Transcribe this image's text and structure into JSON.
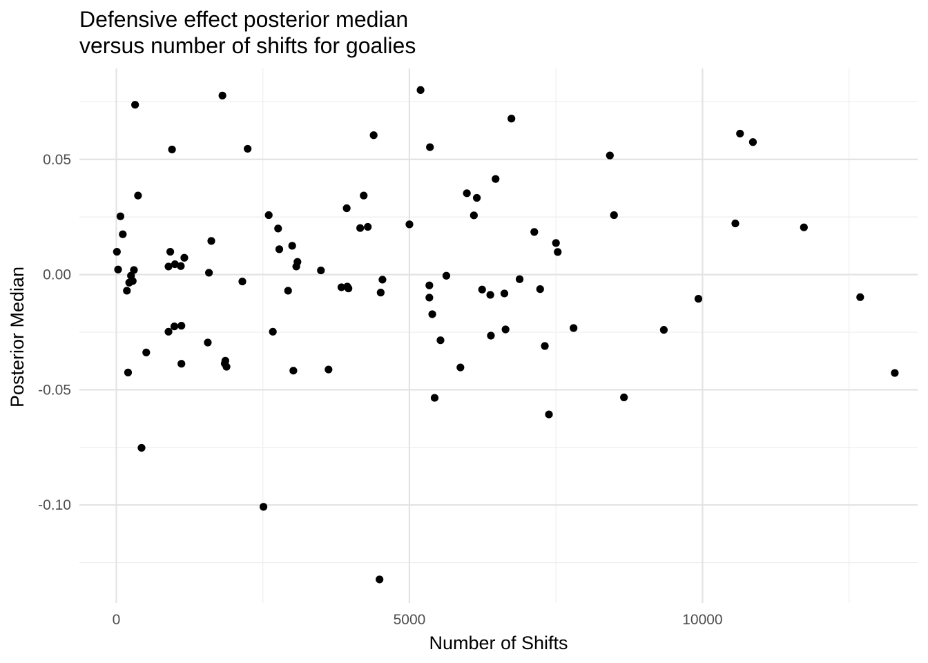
{
  "chart_data": {
    "type": "scatter",
    "title": [
      "Defensive effect posterior median",
      "versus number of shifts for goalies"
    ],
    "xlabel": "Number of Shifts",
    "ylabel": "Posterior Median",
    "xlim": [
      -630,
      13670
    ],
    "ylim": [
      -0.1425,
      0.0895
    ],
    "x_ticks": [
      0,
      5000,
      10000
    ],
    "x_tick_labels": [
      "0",
      "5000",
      "10000"
    ],
    "x_minor_ticks": [
      2500,
      7500,
      12500
    ],
    "y_ticks": [
      -0.1,
      -0.05,
      0.0,
      0.05
    ],
    "y_tick_labels": [
      "-0.10",
      "-0.05",
      "0.00",
      "0.05"
    ],
    "y_minor_ticks": [
      -0.125,
      -0.075,
      -0.025,
      0.025,
      0.075
    ],
    "grid": true,
    "legend": "none",
    "point_color": "#000000",
    "points": [
      {
        "x": 10,
        "y": 0.0099
      },
      {
        "x": 30,
        "y": 0.0022
      },
      {
        "x": 70,
        "y": 0.0253
      },
      {
        "x": 110,
        "y": 0.0175
      },
      {
        "x": 180,
        "y": -0.007
      },
      {
        "x": 200,
        "y": -0.0425
      },
      {
        "x": 220,
        "y": -0.0035
      },
      {
        "x": 250,
        "y": -0.0005
      },
      {
        "x": 280,
        "y": -0.0028
      },
      {
        "x": 300,
        "y": 0.002
      },
      {
        "x": 320,
        "y": 0.0737
      },
      {
        "x": 370,
        "y": 0.0343
      },
      {
        "x": 430,
        "y": -0.0752
      },
      {
        "x": 510,
        "y": -0.0338
      },
      {
        "x": 890,
        "y": 0.0035
      },
      {
        "x": 890,
        "y": -0.0248
      },
      {
        "x": 920,
        "y": 0.0099
      },
      {
        "x": 950,
        "y": 0.0543
      },
      {
        "x": 990,
        "y": -0.0225
      },
      {
        "x": 1000,
        "y": 0.0045
      },
      {
        "x": 1100,
        "y": 0.0037
      },
      {
        "x": 1110,
        "y": -0.0222
      },
      {
        "x": 1110,
        "y": -0.0387
      },
      {
        "x": 1160,
        "y": 0.0073
      },
      {
        "x": 1560,
        "y": -0.0295
      },
      {
        "x": 1580,
        "y": 0.0008
      },
      {
        "x": 1620,
        "y": 0.0146
      },
      {
        "x": 1810,
        "y": 0.0777
      },
      {
        "x": 1850,
        "y": -0.0386
      },
      {
        "x": 1860,
        "y": -0.0374
      },
      {
        "x": 1880,
        "y": -0.04
      },
      {
        "x": 2150,
        "y": -0.003
      },
      {
        "x": 2240,
        "y": 0.0546
      },
      {
        "x": 2510,
        "y": -0.1008
      },
      {
        "x": 2600,
        "y": 0.0258
      },
      {
        "x": 2670,
        "y": -0.0248
      },
      {
        "x": 2760,
        "y": 0.02
      },
      {
        "x": 2780,
        "y": 0.011
      },
      {
        "x": 2930,
        "y": -0.007
      },
      {
        "x": 3000,
        "y": 0.0125
      },
      {
        "x": 3020,
        "y": -0.0417
      },
      {
        "x": 3070,
        "y": 0.0035
      },
      {
        "x": 3090,
        "y": 0.0055
      },
      {
        "x": 3490,
        "y": 0.0018
      },
      {
        "x": 3620,
        "y": -0.0412
      },
      {
        "x": 3840,
        "y": -0.0055
      },
      {
        "x": 3930,
        "y": 0.0288
      },
      {
        "x": 3940,
        "y": -0.0052
      },
      {
        "x": 3960,
        "y": -0.006
      },
      {
        "x": 4160,
        "y": 0.0202
      },
      {
        "x": 4220,
        "y": 0.0343
      },
      {
        "x": 4290,
        "y": 0.0207
      },
      {
        "x": 4390,
        "y": 0.0605
      },
      {
        "x": 4490,
        "y": -0.1323
      },
      {
        "x": 4510,
        "y": -0.0078
      },
      {
        "x": 4540,
        "y": -0.0022
      },
      {
        "x": 5000,
        "y": 0.0218
      },
      {
        "x": 5190,
        "y": 0.0801
      },
      {
        "x": 5340,
        "y": -0.01
      },
      {
        "x": 5340,
        "y": -0.0047
      },
      {
        "x": 5350,
        "y": 0.0553
      },
      {
        "x": 5390,
        "y": -0.0172
      },
      {
        "x": 5430,
        "y": -0.0535
      },
      {
        "x": 5530,
        "y": -0.0285
      },
      {
        "x": 5630,
        "y": -0.0005
      },
      {
        "x": 5870,
        "y": -0.0403
      },
      {
        "x": 5980,
        "y": 0.0353
      },
      {
        "x": 6100,
        "y": 0.0257
      },
      {
        "x": 6150,
        "y": 0.0333
      },
      {
        "x": 6240,
        "y": -0.0065
      },
      {
        "x": 6380,
        "y": -0.0088
      },
      {
        "x": 6390,
        "y": -0.0265
      },
      {
        "x": 6470,
        "y": 0.0415
      },
      {
        "x": 6620,
        "y": -0.0082
      },
      {
        "x": 6640,
        "y": -0.0238
      },
      {
        "x": 6740,
        "y": 0.0677
      },
      {
        "x": 6880,
        "y": -0.002
      },
      {
        "x": 7130,
        "y": 0.0185
      },
      {
        "x": 7230,
        "y": -0.0063
      },
      {
        "x": 7310,
        "y": -0.031
      },
      {
        "x": 7380,
        "y": -0.0607
      },
      {
        "x": 7500,
        "y": 0.0137
      },
      {
        "x": 7530,
        "y": 0.0098
      },
      {
        "x": 7800,
        "y": -0.0232
      },
      {
        "x": 8420,
        "y": 0.0517
      },
      {
        "x": 8490,
        "y": 0.0258
      },
      {
        "x": 8660,
        "y": -0.0533
      },
      {
        "x": 9340,
        "y": -0.024
      },
      {
        "x": 9930,
        "y": -0.0105
      },
      {
        "x": 10560,
        "y": 0.0222
      },
      {
        "x": 10640,
        "y": 0.0612
      },
      {
        "x": 10860,
        "y": 0.0575
      },
      {
        "x": 11730,
        "y": 0.0205
      },
      {
        "x": 12690,
        "y": -0.0098
      },
      {
        "x": 13280,
        "y": -0.0427
      }
    ]
  }
}
